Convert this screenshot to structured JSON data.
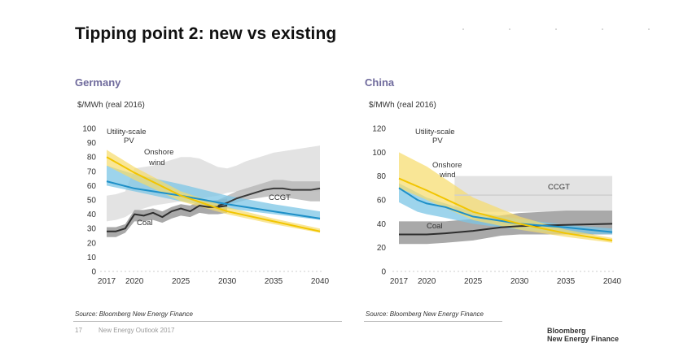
{
  "page": {
    "title": "Tipping point 2: new vs existing",
    "footer_page": "17",
    "footer_text": "New Energy Outlook 2017",
    "logo_line1": "Bloomberg",
    "logo_line2": "New Energy Finance"
  },
  "colors": {
    "pv": "#f2c500",
    "pv_band": "#f7dc6a",
    "wind": "#1e90c8",
    "wind_band": "#7cc6e6",
    "ccgt_line": "#3a3a3a",
    "ccgt_band_outer": "#e3e3e3",
    "ccgt_band_inner": "#b8b8b8",
    "coal_line": "#2e2e2e",
    "coal_band": "#9a9a9a",
    "region_title": "#6f6a9c"
  },
  "chart_data": [
    {
      "type": "area",
      "region": "Germany",
      "unit_label": "$/MWh (real 2016)",
      "source": "Source: Bloomberg New Energy Finance",
      "xlabel": "",
      "ylabel": "$/MWh (real 2016)",
      "xlim": [
        2017,
        2040
      ],
      "ylim": [
        0,
        100
      ],
      "yticks": [
        0,
        10,
        20,
        30,
        40,
        50,
        60,
        70,
        80,
        90,
        100
      ],
      "xticks": [
        2017,
        2020,
        2025,
        2030,
        2035,
        2040
      ],
      "grid": false,
      "annotations": [
        {
          "text": "Utility-scale",
          "series": "Utility-scale PV"
        },
        {
          "text": "PV",
          "series": "Utility-scale PV"
        },
        {
          "text": "Onshore",
          "series": "Onshore wind"
        },
        {
          "text": "wind",
          "series": "Onshore wind"
        },
        {
          "text": "CCGT",
          "series": "CCGT"
        },
        {
          "text": "Coal",
          "series": "Coal"
        }
      ],
      "series": [
        {
          "name": "CCGT",
          "x": [
            2017,
            2018,
            2019,
            2020,
            2021,
            2022,
            2023,
            2024,
            2025,
            2026,
            2027,
            2028,
            2029,
            2030,
            2031,
            2032,
            2033,
            2034,
            2035,
            2036,
            2037,
            2038,
            2039,
            2040
          ],
          "outer_low": [
            35,
            36,
            38,
            42,
            44,
            46,
            47,
            48,
            49,
            50,
            51,
            52,
            53,
            55,
            56,
            56,
            57,
            57,
            57,
            57,
            56,
            56,
            56,
            56
          ],
          "outer_high": [
            53,
            54,
            56,
            72,
            73,
            74,
            76,
            78,
            80,
            80,
            79,
            76,
            73,
            72,
            74,
            77,
            79,
            81,
            83,
            84,
            85,
            86,
            87,
            88
          ],
          "inner_low": [
            null,
            null,
            null,
            null,
            null,
            null,
            null,
            null,
            null,
            null,
            null,
            null,
            45,
            46,
            48,
            50,
            51,
            52,
            53,
            52,
            51,
            50,
            49,
            49
          ],
          "inner_high": [
            null,
            null,
            null,
            null,
            null,
            null,
            null,
            null,
            null,
            null,
            null,
            null,
            50,
            53,
            56,
            58,
            60,
            62,
            64,
            64,
            63,
            63,
            63,
            63
          ],
          "values": [
            null,
            null,
            null,
            null,
            null,
            null,
            null,
            null,
            null,
            null,
            null,
            null,
            46,
            48,
            51,
            53,
            55,
            57,
            58,
            58,
            57,
            57,
            57,
            58
          ]
        },
        {
          "name": "Coal",
          "x": [
            2017,
            2018,
            2019,
            2020,
            2021,
            2022,
            2023,
            2024,
            2025,
            2026,
            2027,
            2028,
            2029,
            2030
          ],
          "low": [
            24,
            24,
            27,
            35,
            35,
            36,
            34,
            37,
            39,
            38,
            41,
            40,
            40,
            41
          ],
          "high": [
            31,
            31,
            33,
            43,
            43,
            44,
            42,
            45,
            47,
            46,
            49,
            49,
            50,
            51
          ],
          "values": [
            28,
            28,
            30,
            40,
            39,
            41,
            38,
            42,
            44,
            42,
            46,
            45,
            45,
            46
          ]
        },
        {
          "name": "Onshore wind",
          "x": [
            2017,
            2020,
            2025,
            2030,
            2035,
            2040
          ],
          "low": [
            60,
            56,
            49,
            44,
            40,
            36
          ],
          "high": [
            74,
            68,
            61,
            53,
            47,
            42
          ],
          "values": [
            63,
            58,
            53,
            47,
            42,
            37
          ]
        },
        {
          "name": "Utility-scale PV",
          "x": [
            2017,
            2020,
            2025,
            2030,
            2035,
            2040
          ],
          "low": [
            74,
            64,
            49,
            40,
            33,
            27
          ],
          "high": [
            85,
            73,
            56,
            45,
            37,
            30
          ],
          "values": [
            80,
            69,
            53,
            42,
            35,
            28
          ]
        }
      ]
    },
    {
      "type": "area",
      "region": "China",
      "unit_label": "$/MWh (real 2016)",
      "source": "Source: Bloomberg New Energy Finance",
      "xlabel": "",
      "ylabel": "$/MWh (real 2016)",
      "xlim": [
        2017,
        2040
      ],
      "ylim": [
        0,
        120
      ],
      "yticks": [
        0,
        20,
        40,
        60,
        80,
        100,
        120
      ],
      "xticks": [
        2017,
        2020,
        2025,
        2030,
        2035,
        2040
      ],
      "grid": false,
      "annotations": [
        {
          "text": "Utility-scale",
          "series": "Utility-scale PV"
        },
        {
          "text": "PV",
          "series": "Utility-scale PV"
        },
        {
          "text": "Onshore",
          "series": "Onshore wind"
        },
        {
          "text": "wind",
          "series": "Onshore wind"
        },
        {
          "text": "CCGT",
          "series": "CCGT"
        },
        {
          "text": "Coal",
          "series": "Coal"
        }
      ],
      "series": [
        {
          "name": "CCGT",
          "x": [
            2017,
            2020,
            2023,
            2025,
            2030,
            2035,
            2040
          ],
          "outer_low": [
            null,
            null,
            50,
            50,
            50,
            50,
            50
          ],
          "outer_high": [
            null,
            null,
            80,
            80,
            80,
            80,
            80
          ],
          "values": [
            null,
            null,
            64,
            64,
            64,
            64,
            64
          ]
        },
        {
          "name": "Coal",
          "x": [
            2017,
            2020,
            2022,
            2025,
            2028,
            2030,
            2035,
            2040
          ],
          "low": [
            23,
            23,
            24,
            26,
            30,
            31,
            31,
            31
          ],
          "high": [
            42,
            42,
            42,
            44,
            47,
            49,
            51,
            51
          ],
          "values": [
            31,
            31,
            32,
            34,
            37,
            38,
            39,
            40
          ]
        },
        {
          "name": "Onshore wind",
          "x": [
            2017,
            2019,
            2020,
            2022,
            2025,
            2030,
            2035,
            2040
          ],
          "low": [
            58,
            50,
            48,
            45,
            40,
            35,
            32,
            31
          ],
          "high": [
            74,
            66,
            62,
            57,
            50,
            44,
            39,
            36
          ],
          "values": [
            70,
            60,
            57,
            54,
            46,
            40,
            37,
            33
          ]
        },
        {
          "name": "Utility-scale PV",
          "x": [
            2017,
            2020,
            2025,
            2030,
            2035,
            2040
          ],
          "low": [
            70,
            60,
            43,
            35,
            29,
            24
          ],
          "high": [
            100,
            88,
            62,
            46,
            35,
            28
          ],
          "values": [
            78,
            68,
            50,
            40,
            32,
            26
          ]
        }
      ]
    }
  ]
}
